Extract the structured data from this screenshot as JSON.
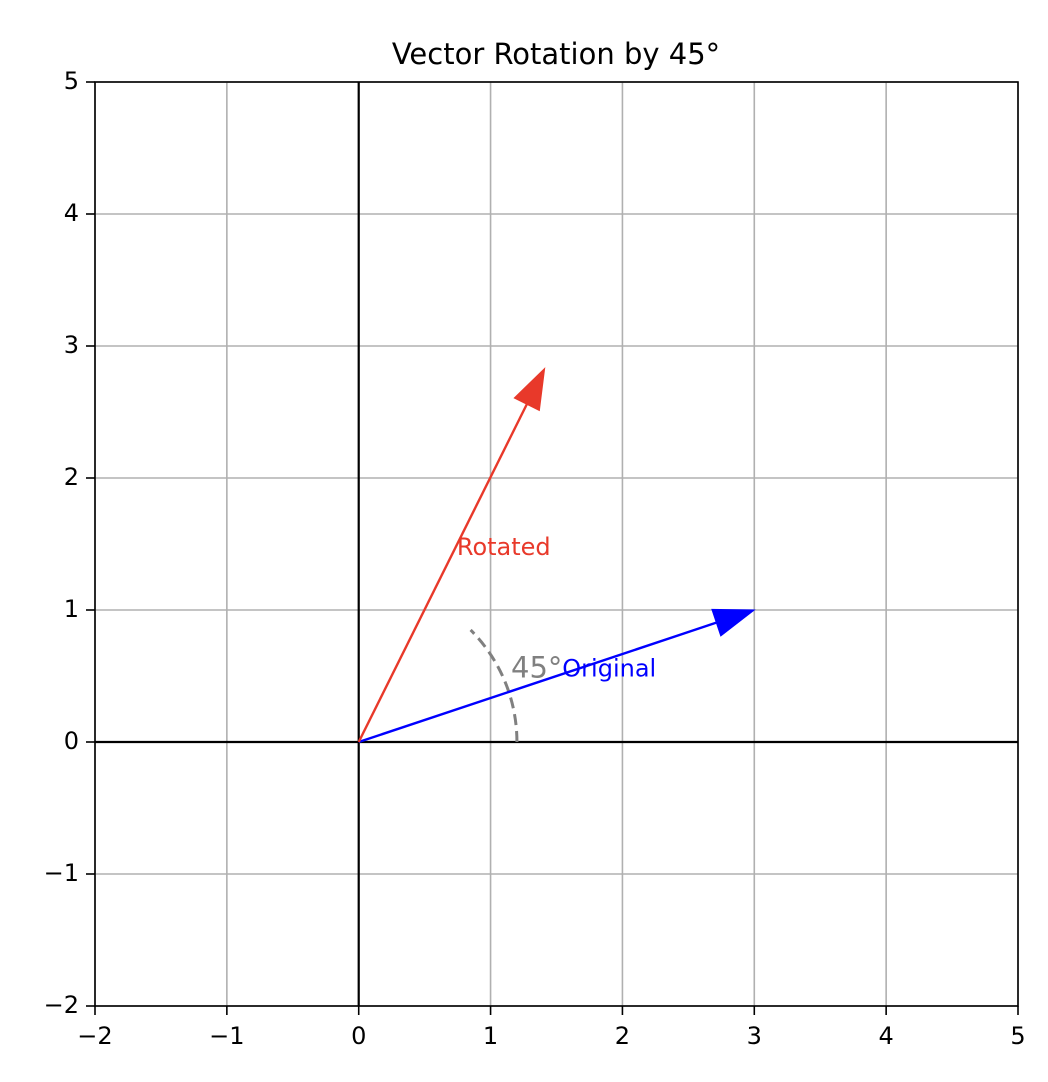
{
  "chart_data": {
    "type": "line",
    "title": "Vector Rotation by 45°",
    "xlabel": "",
    "ylabel": "",
    "xlim": [
      -2,
      5
    ],
    "ylim": [
      -2,
      5
    ],
    "grid": true,
    "x_ticks": [
      -2,
      -1,
      0,
      1,
      2,
      3,
      4,
      5
    ],
    "y_ticks": [
      -2,
      -1,
      0,
      1,
      2,
      3,
      4,
      5
    ],
    "x_tick_labels": [
      "−2",
      "−1",
      "0",
      "1",
      "2",
      "3",
      "4",
      "5"
    ],
    "y_tick_labels": [
      "−2",
      "−1",
      "0",
      "1",
      "2",
      "3",
      "4",
      "5"
    ],
    "vectors": [
      {
        "label": "Original",
        "from": [
          0,
          0
        ],
        "to": [
          3,
          1
        ],
        "color": "#0000ff",
        "label_at": [
          1.9,
          0.55
        ]
      },
      {
        "label": "Rotated",
        "from": [
          0,
          0
        ],
        "to": [
          1.41,
          2.83
        ],
        "color": "#e8392a",
        "label_at": [
          1.1,
          1.47
        ]
      }
    ],
    "angle_arc": {
      "label": "45°",
      "radius": 1.2,
      "start_deg": 0,
      "end_deg": 45,
      "color": "#808080",
      "label_at": [
        1.35,
        0.55
      ]
    },
    "axes_lines_at_zero": true
  }
}
